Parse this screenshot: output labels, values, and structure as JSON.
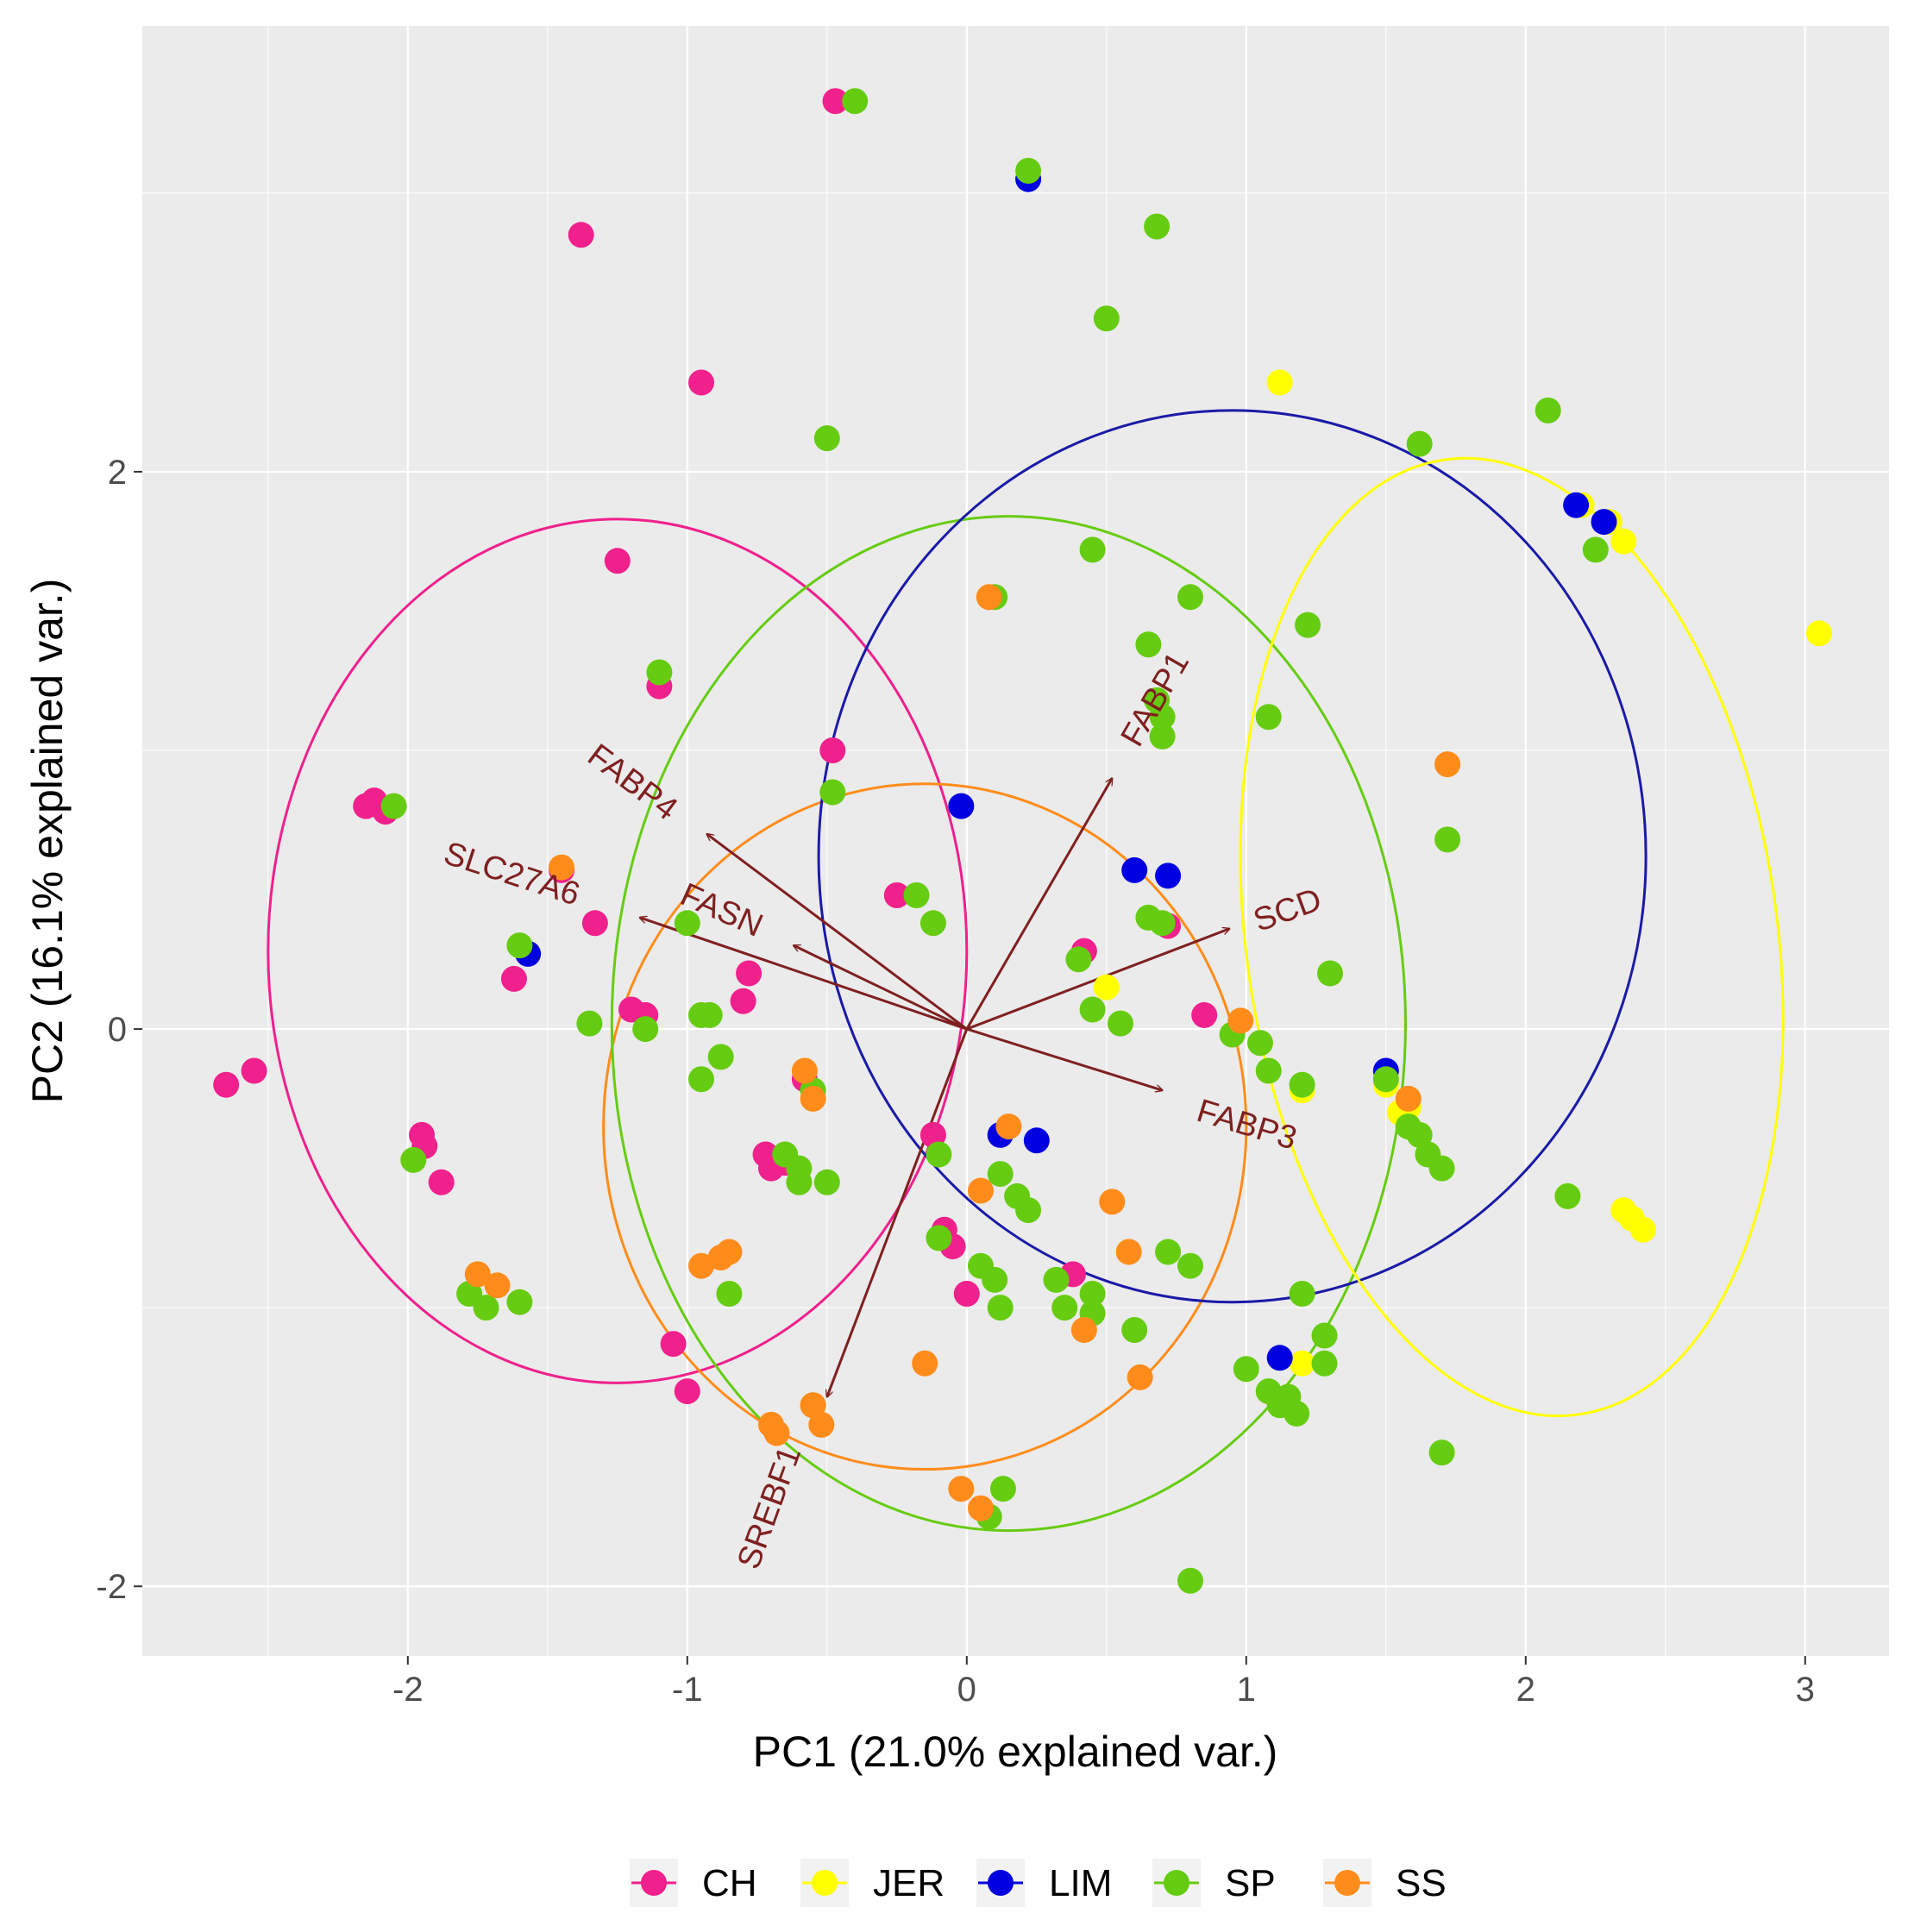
{
  "chart_data": {
    "type": "scatter",
    "title": "",
    "xlabel": "PC1 (21.0% explained var.)",
    "ylabel": "PC2 (16.1% explained var.)",
    "xlim": [
      -2.95,
      3.3
    ],
    "ylim": [
      -2.25,
      3.6
    ],
    "xticks": [
      -2,
      -1,
      0,
      1,
      2,
      3
    ],
    "yticks": [
      -2,
      0,
      2
    ],
    "xtick_labels": [
      "-2",
      "-1",
      "0",
      "1",
      "2",
      "3"
    ],
    "ytick_labels": [
      "-2",
      "0",
      "2"
    ],
    "grid": true,
    "legend_position": "bottom",
    "colors": {
      "CH": "#f0208c",
      "JER": "#ffff00",
      "LIM": "#0000e0",
      "SP": "#66cc11",
      "SS": "#ff8c1a",
      "arrow": "#7f2020",
      "panel": "#ebebeb",
      "grid": "#ffffff",
      "ellipse_LIM": "#1a1aa8"
    },
    "series": [
      {
        "name": "CH",
        "points": [
          [
            -2.65,
            -0.2
          ],
          [
            -2.55,
            -0.15
          ],
          [
            -2.15,
            0.8
          ],
          [
            -2.12,
            0.82
          ],
          [
            -2.08,
            0.78
          ],
          [
            -1.95,
            -0.38
          ],
          [
            -1.94,
            -0.42
          ],
          [
            -1.88,
            -0.55
          ],
          [
            -1.62,
            0.18
          ],
          [
            -1.45,
            0.57
          ],
          [
            -1.38,
            2.85
          ],
          [
            -1.33,
            0.38
          ],
          [
            -1.25,
            1.68
          ],
          [
            -1.2,
            0.07
          ],
          [
            -1.15,
            0.05
          ],
          [
            -1.1,
            1.23
          ],
          [
            -1.05,
            -1.13
          ],
          [
            -1.0,
            -1.3
          ],
          [
            -0.95,
            2.32
          ],
          [
            -0.8,
            0.1
          ],
          [
            -0.78,
            0.2
          ],
          [
            -0.72,
            -0.45
          ],
          [
            -0.7,
            -0.5
          ],
          [
            -0.65,
            -0.48
          ],
          [
            -0.58,
            -0.18
          ],
          [
            -0.48,
            1.0
          ],
          [
            -0.47,
            3.33
          ],
          [
            -0.25,
            0.48
          ],
          [
            -0.12,
            -0.38
          ],
          [
            -0.08,
            -0.72
          ],
          [
            -0.05,
            -0.78
          ],
          [
            0.0,
            -0.95
          ],
          [
            0.42,
            0.28
          ],
          [
            0.38,
            -0.88
          ],
          [
            0.72,
            0.37
          ],
          [
            0.85,
            0.05
          ]
        ]
      },
      {
        "name": "JER",
        "points": [
          [
            0.5,
            0.15
          ],
          [
            1.12,
            2.32
          ],
          [
            1.5,
            -0.2
          ],
          [
            1.55,
            -0.3
          ],
          [
            1.58,
            -0.28
          ],
          [
            1.2,
            -1.2
          ],
          [
            2.15,
            -0.6
          ],
          [
            2.2,
            1.88
          ],
          [
            2.3,
            1.82
          ],
          [
            2.35,
            1.75
          ],
          [
            2.35,
            -0.65
          ],
          [
            2.38,
            -0.68
          ],
          [
            2.42,
            -0.72
          ],
          [
            3.05,
            1.42
          ],
          [
            1.2,
            -0.22
          ]
        ]
      },
      {
        "name": "LIM",
        "points": [
          [
            -1.57,
            0.27
          ],
          [
            -0.02,
            0.8
          ],
          [
            0.22,
            3.05
          ],
          [
            0.6,
            0.57
          ],
          [
            0.72,
            0.55
          ],
          [
            0.12,
            -0.38
          ],
          [
            0.25,
            -0.4
          ],
          [
            1.12,
            -1.18
          ],
          [
            1.5,
            -0.15
          ],
          [
            2.18,
            1.88
          ],
          [
            2.28,
            1.82
          ]
        ]
      },
      {
        "name": "SP",
        "points": [
          [
            -2.05,
            0.8
          ],
          [
            -1.98,
            -0.47
          ],
          [
            -1.78,
            -0.95
          ],
          [
            -1.72,
            -1.0
          ],
          [
            -1.6,
            -0.98
          ],
          [
            -1.6,
            0.3
          ],
          [
            -1.35,
            0.02
          ],
          [
            -1.15,
            0.0
          ],
          [
            -1.1,
            1.28
          ],
          [
            -1.0,
            0.38
          ],
          [
            -0.95,
            0.05
          ],
          [
            -0.92,
            0.05
          ],
          [
            -0.95,
            -0.18
          ],
          [
            -0.88,
            -0.1
          ],
          [
            -0.85,
            -0.95
          ],
          [
            -0.65,
            -0.45
          ],
          [
            -0.6,
            -0.5
          ],
          [
            -0.6,
            -0.55
          ],
          [
            -0.55,
            -0.22
          ],
          [
            -0.55,
            -1.35
          ],
          [
            -0.5,
            -0.55
          ],
          [
            -0.48,
            0.85
          ],
          [
            -0.5,
            2.12
          ],
          [
            -0.4,
            3.33
          ],
          [
            -0.18,
            0.48
          ],
          [
            -0.12,
            0.38
          ],
          [
            -0.1,
            -0.45
          ],
          [
            -0.1,
            -0.75
          ],
          [
            0.05,
            -0.85
          ],
          [
            0.1,
            -0.9
          ],
          [
            0.12,
            -1.0
          ],
          [
            0.1,
            1.55
          ],
          [
            0.12,
            -0.52
          ],
          [
            0.18,
            -0.6
          ],
          [
            0.22,
            -0.65
          ],
          [
            0.13,
            -1.65
          ],
          [
            0.08,
            -1.75
          ],
          [
            0.22,
            3.08
          ],
          [
            0.32,
            -0.9
          ],
          [
            0.35,
            -1.0
          ],
          [
            0.4,
            0.25
          ],
          [
            0.45,
            0.07
          ],
          [
            0.45,
            -0.95
          ],
          [
            0.45,
            -1.02
          ],
          [
            0.45,
            1.72
          ],
          [
            0.5,
            2.55
          ],
          [
            0.55,
            0.02
          ],
          [
            0.6,
            -1.08
          ],
          [
            0.65,
            1.38
          ],
          [
            0.68,
            1.18
          ],
          [
            0.7,
            1.05
          ],
          [
            0.7,
            1.12
          ],
          [
            0.68,
            2.88
          ],
          [
            0.65,
            0.4
          ],
          [
            0.7,
            0.38
          ],
          [
            0.72,
            -0.8
          ],
          [
            0.8,
            -0.85
          ],
          [
            0.8,
            1.55
          ],
          [
            0.8,
            -1.98
          ],
          [
            0.95,
            -0.02
          ],
          [
            1.0,
            -1.22
          ],
          [
            1.05,
            -0.05
          ],
          [
            1.08,
            -0.15
          ],
          [
            1.08,
            -1.3
          ],
          [
            1.08,
            1.12
          ],
          [
            1.12,
            -1.35
          ],
          [
            1.15,
            -1.32
          ],
          [
            1.18,
            -1.38
          ],
          [
            1.2,
            -0.2
          ],
          [
            1.22,
            1.45
          ],
          [
            1.2,
            -0.95
          ],
          [
            1.28,
            -1.1
          ],
          [
            1.28,
            -1.2
          ],
          [
            1.3,
            0.2
          ],
          [
            1.5,
            -0.18
          ],
          [
            1.58,
            -0.35
          ],
          [
            1.62,
            2.1
          ],
          [
            1.62,
            -0.38
          ],
          [
            1.65,
            -0.45
          ],
          [
            1.7,
            -0.5
          ],
          [
            1.72,
            0.68
          ],
          [
            1.7,
            -1.52
          ],
          [
            2.08,
            2.22
          ],
          [
            2.15,
            -0.6
          ],
          [
            2.25,
            1.72
          ]
        ]
      },
      {
        "name": "SS",
        "points": [
          [
            -1.75,
            -0.88
          ],
          [
            -1.68,
            -0.92
          ],
          [
            -1.45,
            0.58
          ],
          [
            -0.95,
            -0.85
          ],
          [
            -0.88,
            -0.82
          ],
          [
            -0.85,
            -0.8
          ],
          [
            -0.7,
            -1.42
          ],
          [
            -0.68,
            -1.45
          ],
          [
            -0.58,
            -0.15
          ],
          [
            -0.55,
            -0.25
          ],
          [
            -0.52,
            -1.42
          ],
          [
            -0.55,
            -1.35
          ],
          [
            -0.15,
            -1.2
          ],
          [
            0.05,
            -0.58
          ],
          [
            -0.02,
            -1.65
          ],
          [
            0.05,
            -1.72
          ],
          [
            0.15,
            -0.35
          ],
          [
            0.08,
            1.55
          ],
          [
            0.42,
            -1.08
          ],
          [
            0.52,
            -0.62
          ],
          [
            0.58,
            -0.8
          ],
          [
            0.62,
            -1.25
          ],
          [
            0.98,
            0.03
          ],
          [
            1.58,
            -0.25
          ],
          [
            1.72,
            0.95
          ]
        ]
      }
    ],
    "ellipses": [
      {
        "group": "CH",
        "center": [
          -1.25,
          0.28
        ],
        "rx": 1.25,
        "ry": 1.55
      },
      {
        "group": "SS",
        "center": [
          -0.15,
          -0.35
        ],
        "rx": 1.15,
        "ry": 1.23
      },
      {
        "group": "SP",
        "center": [
          0.15,
          0.02
        ],
        "rx": 1.42,
        "ry": 1.82
      },
      {
        "group": "LIM",
        "center": [
          0.95,
          0.62
        ],
        "rx": 1.48,
        "ry": 1.6
      },
      {
        "group": "JER",
        "center": [
          1.95,
          0.33
        ],
        "rx": 0.95,
        "ry": 1.73,
        "angle_deg": -8
      }
    ],
    "loadings": [
      {
        "label": "FABP1",
        "end": [
          0.52,
          0.9
        ]
      },
      {
        "label": "FABP4",
        "end": [
          -0.93,
          0.7
        ]
      },
      {
        "label": "SLC27A6",
        "end": [
          -1.17,
          0.4
        ]
      },
      {
        "label": "FASN",
        "end": [
          -0.62,
          0.3
        ]
      },
      {
        "label": "SCD",
        "end": [
          0.94,
          0.36
        ]
      },
      {
        "label": "FABP3",
        "end": [
          0.7,
          -0.22
        ]
      },
      {
        "label": "SREBF1",
        "end": [
          -0.5,
          -1.32
        ]
      }
    ],
    "loading_labels": [
      {
        "text": "FABP1",
        "at": [
          0.68,
          1.18
        ],
        "angle": -60
      },
      {
        "text": "FABP4",
        "at": [
          -1.2,
          0.88
        ],
        "angle": 37
      },
      {
        "text": "SLC27A6",
        "at": [
          -1.63,
          0.55
        ],
        "angle": 18
      },
      {
        "text": "FASN",
        "at": [
          -0.88,
          0.42
        ],
        "angle": 24
      },
      {
        "text": "SCD",
        "at": [
          1.15,
          0.42
        ],
        "angle": -20
      },
      {
        "text": "FABP3",
        "at": [
          1.0,
          -0.35
        ],
        "angle": 17
      },
      {
        "text": "SREBF1",
        "at": [
          -0.7,
          -1.72
        ],
        "angle": -70
      }
    ],
    "legend": [
      "CH",
      "JER",
      "LIM",
      "SP",
      "SS"
    ]
  }
}
